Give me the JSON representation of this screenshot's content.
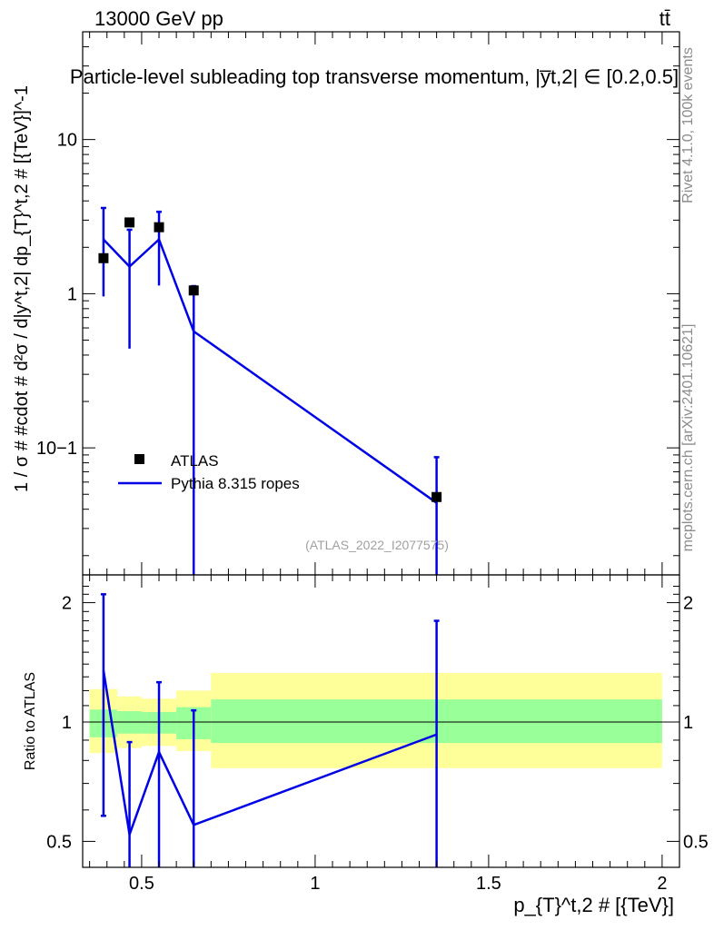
{
  "header": {
    "energy_label": "13000 GeV pp",
    "process_label": "tt̄"
  },
  "side_labels": {
    "rivet": "Rivet 4.1.0,  100k events",
    "mcplots": "mcplots.cern.ch [arXiv:2401.10621]"
  },
  "colors": {
    "mc": "#0000e6",
    "data": "#000000",
    "band_inner": "#99ff99",
    "band_outer": "#ffff99"
  },
  "chart_data": [
    {
      "type": "line",
      "panel": "main",
      "title": "Particle-level subleading top transverse momentum, |y̅t,2| ∈ [0.2,0.5]",
      "ylabel": "1 / σ # #cdot # d²σ / d|y^t,2| dp_{T}^t,2 # [{TeV}]^-1",
      "yscale": "log",
      "ylim": [
        0.015,
        50
      ],
      "xlim": [
        0.33,
        2.05
      ],
      "yticks": [
        {
          "value": 10,
          "label": "10"
        },
        {
          "value": 1,
          "label": "1"
        },
        {
          "value": 0.1,
          "label": "10−1"
        }
      ],
      "legend": {
        "position": "bottom-left",
        "entries": [
          "ATLAS",
          "Pythia 8.315 ropes"
        ]
      },
      "watermark": "(ATLAS_2022_I2077575)",
      "series": [
        {
          "name": "ATLAS",
          "kind": "markers",
          "x": [
            0.39,
            0.465,
            0.55,
            0.65,
            1.35
          ],
          "y": [
            1.7,
            2.9,
            2.7,
            1.05,
            0.048
          ]
        },
        {
          "name": "Pythia 8.315 ropes",
          "kind": "line",
          "x": [
            0.39,
            0.465,
            0.55,
            0.65,
            1.35
          ],
          "y": [
            2.25,
            1.5,
            2.25,
            0.57,
            0.044
          ],
          "err_low": [
            0.96,
            0.44,
            1.13,
            0.001,
            0.001
          ],
          "err_high": [
            3.6,
            2.6,
            3.4,
            1.12,
            0.087
          ]
        }
      ]
    },
    {
      "type": "line",
      "panel": "ratio",
      "ylabel": "Ratio to ATLAS",
      "xlabel": "p_{T}^t,2 # [{TeV}]",
      "yscale": "log",
      "ylim": [
        0.43,
        2.35
      ],
      "xlim": [
        0.33,
        2.05
      ],
      "xticks": [
        {
          "value": 0.5,
          "label": "0.5"
        },
        {
          "value": 1,
          "label": "1"
        },
        {
          "value": 1.5,
          "label": "1.5"
        },
        {
          "value": 2,
          "label": "2"
        }
      ],
      "yticks": [
        {
          "value": 0.5,
          "label": "0.5"
        },
        {
          "value": 1,
          "label": "1"
        },
        {
          "value": 2,
          "label": "2"
        }
      ],
      "bands": [
        {
          "x_lo": 0.35,
          "x_hi": 0.43,
          "inner": [
            0.915,
            1.075
          ],
          "outer": [
            0.835,
            1.21
          ]
        },
        {
          "x_lo": 0.43,
          "x_hi": 0.5,
          "inner": [
            0.935,
            1.065
          ],
          "outer": [
            0.86,
            1.16
          ]
        },
        {
          "x_lo": 0.5,
          "x_hi": 0.6,
          "inner": [
            0.935,
            1.06
          ],
          "outer": [
            0.87,
            1.145
          ]
        },
        {
          "x_lo": 0.6,
          "x_hi": 0.7,
          "inner": [
            0.905,
            1.09
          ],
          "outer": [
            0.845,
            1.2
          ]
        },
        {
          "x_lo": 0.7,
          "x_hi": 2.0,
          "inner": [
            0.885,
            1.14
          ],
          "outer": [
            0.765,
            1.33
          ]
        }
      ],
      "series": [
        {
          "name": "Pythia 8.315 ropes",
          "kind": "line",
          "x": [
            0.39,
            0.465,
            0.55,
            0.65,
            1.35
          ],
          "y": [
            1.35,
            0.52,
            0.84,
            0.55,
            0.93
          ],
          "err_low": [
            0.58,
            0.001,
            0.35,
            0.001,
            0.001
          ],
          "err_high": [
            2.1,
            0.89,
            1.26,
            1.07,
            1.8
          ]
        }
      ]
    }
  ]
}
